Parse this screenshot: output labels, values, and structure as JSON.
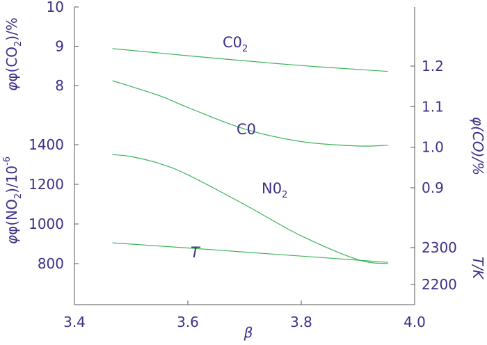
{
  "chart_data": {
    "type": "line",
    "colors": {
      "axis": "#555555",
      "text": "#3b2f86",
      "line": "#3cb25a"
    },
    "x": {
      "label": "β",
      "range": [
        3.4,
        4.0
      ],
      "ticks": [
        3.4,
        3.6,
        3.8,
        4.0
      ],
      "tick_labels": [
        "3.4",
        "3.6",
        "3.8",
        "4.0"
      ]
    },
    "axes": {
      "co2": {
        "label": "φ(CO₂)/%",
        "label_main": "φ(CO",
        "label_sub": "2",
        "label_tail": ")/%",
        "range": [
          7.5,
          10
        ],
        "ticks": [
          8,
          9,
          10
        ],
        "tick_labels": [
          "8",
          "9",
          "10"
        ]
      },
      "no2": {
        "label": "φ(NO₂)/10⁻⁶",
        "label_main": "φ(NO",
        "label_sub": "2",
        "label_mid": ")/10",
        "label_sup": "-6",
        "range": [
          600,
          1450
        ],
        "ticks": [
          800,
          1000,
          1200,
          1400
        ],
        "tick_labels": [
          "800",
          "1000",
          "1200",
          "1400"
        ]
      },
      "co": {
        "label": "φ(CO)/%",
        "range": [
          0.75,
          1.35
        ],
        "ticks": [
          0.9,
          1.0,
          1.1,
          1.2
        ],
        "tick_labels": [
          "0.9",
          "1.0",
          "1.1",
          "1.2"
        ]
      },
      "t": {
        "label": "T/K",
        "range": [
          2150,
          2380
        ],
        "ticks": [
          2200,
          2300
        ],
        "tick_labels": [
          "2200",
          "2300"
        ]
      }
    },
    "series": [
      {
        "name": "CO₂",
        "label_main": "C0",
        "label_sub": "2",
        "axis": "co2",
        "x": [
          3.467,
          3.6,
          3.7,
          3.8,
          3.9,
          3.953
        ],
        "y": [
          8.94,
          8.76,
          8.63,
          8.51,
          8.41,
          8.36
        ]
      },
      {
        "name": "CO",
        "label_main": "C0",
        "axis": "co",
        "x": [
          3.467,
          3.55,
          3.6,
          3.7,
          3.8,
          3.9,
          3.953
        ],
        "y": [
          1.164,
          1.127,
          1.098,
          1.045,
          1.014,
          1.003,
          1.005
        ]
      },
      {
        "name": "NO₂",
        "label_main": "N0",
        "label_sub": "2",
        "axis": "no2",
        "x": [
          3.467,
          3.5,
          3.55,
          3.6,
          3.7,
          3.8,
          3.9,
          3.953
        ],
        "y": [
          1350,
          1340,
          1305,
          1248,
          1098,
          940,
          820,
          800
        ]
      },
      {
        "name": "T",
        "label_main": "T",
        "label_italic": true,
        "axis": "t",
        "x": [
          3.467,
          3.6,
          3.7,
          3.8,
          3.9,
          3.953
        ],
        "y": [
          2313,
          2299,
          2288,
          2277,
          2266,
          2260
        ]
      }
    ]
  }
}
